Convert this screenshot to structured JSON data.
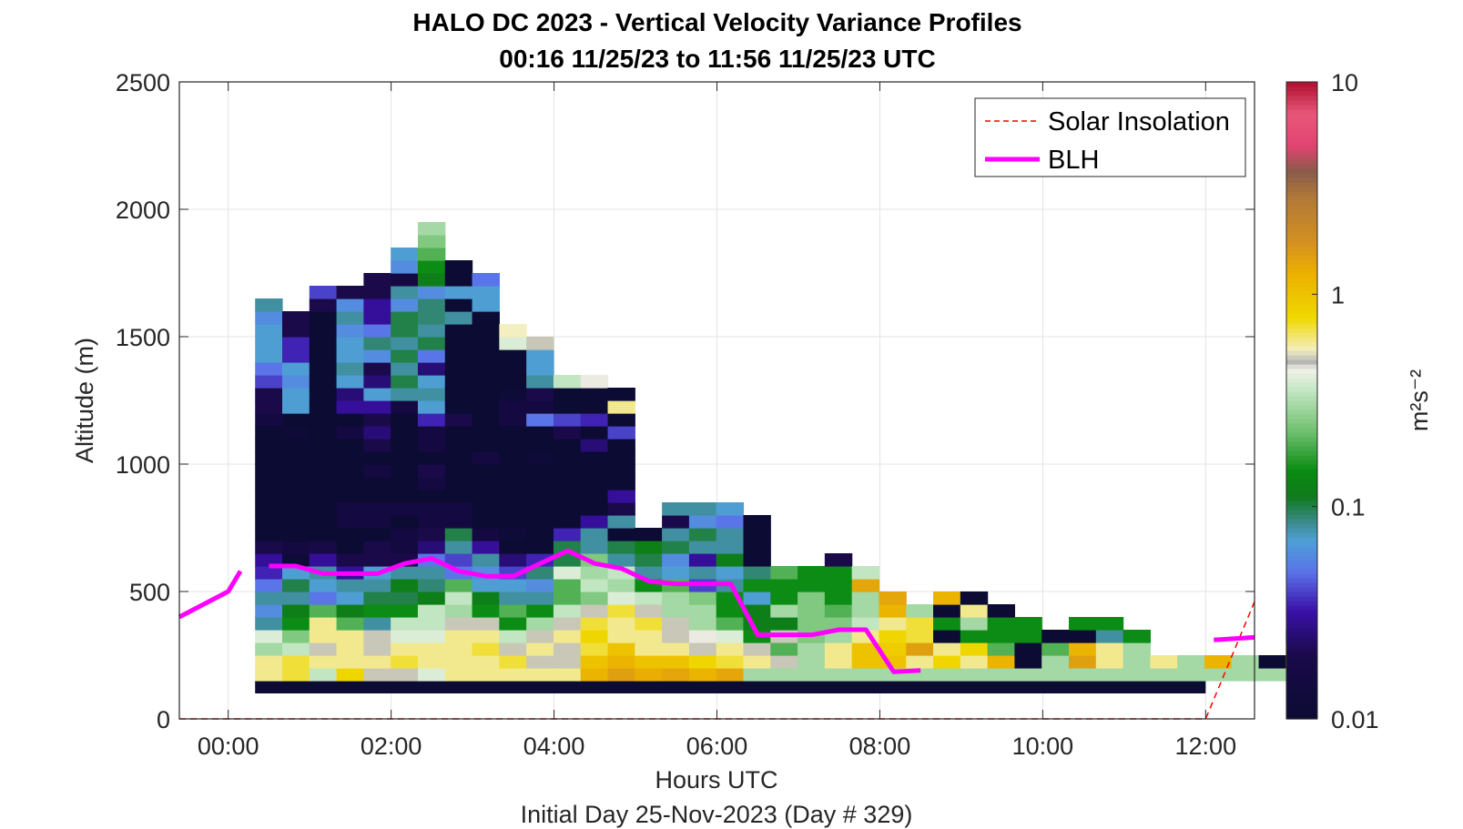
{
  "chart_data": {
    "type": "heatmap",
    "title": "HALO DC 2023 - Vertical Velocity Variance Profiles",
    "subtitle": "00:16 11/25/23 to 11:56 11/25/23  UTC",
    "xlabel": "Hours UTC",
    "footer": "Initial Day 25-Nov-2023 (Day # 329)",
    "ylabel": "Altitude (m)",
    "xlim": [
      -0.6,
      12.6
    ],
    "ylim": [
      0,
      2500
    ],
    "x_ticks": [
      0,
      2,
      4,
      6,
      8,
      10,
      12
    ],
    "x_tick_labels": [
      "00:00",
      "02:00",
      "04:00",
      "06:00",
      "08:00",
      "10:00",
      "12:00"
    ],
    "y_ticks": [
      0,
      500,
      1000,
      1500,
      2000,
      2500
    ],
    "y_tick_labels": [
      "0",
      "500",
      "1000",
      "1500",
      "2000",
      "2500"
    ],
    "grid": true,
    "legend_location": "top-right",
    "colorbar": {
      "scale": "log",
      "range": [
        0.01,
        10
      ],
      "ticks": [
        0.01,
        0.1,
        1,
        10
      ],
      "tick_labels": [
        "0.01",
        "0.1",
        "1",
        "10"
      ],
      "label": "m²s⁻²"
    },
    "cell_height_m": 50,
    "profile_start_hour": 0.33,
    "profile_step_hour": 0.333,
    "profiles": [
      {
        "z0": 150,
        "v": [
          0.6,
          0.6,
          0.3,
          0.4,
          0.08,
          0.06,
          0.08,
          0.05,
          0.035,
          0.03,
          0.02,
          0.01,
          0.01,
          0.01,
          0.01,
          0.01,
          0.01,
          0.01,
          0.01,
          0.01,
          0.015,
          0.02,
          0.02,
          0.04,
          0.05,
          0.07,
          0.07,
          0.07,
          0.06,
          0.08
        ]
      },
      {
        "z0": 150,
        "v": [
          0.7,
          0.7,
          0.35,
          0.25,
          0.15,
          0.12,
          0.08,
          0.1,
          0.07,
          0.012,
          0.015,
          0.01,
          0.01,
          0.01,
          0.01,
          0.01,
          0.01,
          0.01,
          0.01,
          0.012,
          0.01,
          0.07,
          0.07,
          0.06,
          0.07,
          0.035,
          0.035,
          0.02,
          0.02
        ]
      },
      {
        "z0": 150,
        "v": [
          0.35,
          0.6,
          0.5,
          0.6,
          0.6,
          0.2,
          0.05,
          0.07,
          0.08,
          0.03,
          0.018,
          0.01,
          0.01,
          0.01,
          0.01,
          0.01,
          0.01,
          0.01,
          0.01,
          0.01,
          0.01,
          0.01,
          0.01,
          0.01,
          0.01,
          0.01,
          0.01,
          0.01,
          0.01,
          0.02,
          0.04
        ]
      },
      {
        "z0": 150,
        "v": [
          0.8,
          0.6,
          0.6,
          0.6,
          0.2,
          0.12,
          0.07,
          0.08,
          0.03,
          0.02,
          0.01,
          0.01,
          0.015,
          0.015,
          0.01,
          0.01,
          0.01,
          0.01,
          0.01,
          0.015,
          0.01,
          0.03,
          0.025,
          0.07,
          0.08,
          0.07,
          0.07,
          0.06,
          0.08,
          0.06,
          0.02
        ]
      },
      {
        "z0": 150,
        "v": [
          0.5,
          0.6,
          0.5,
          0.5,
          0.08,
          0.15,
          0.1,
          0.08,
          0.07,
          0.02,
          0.02,
          0.01,
          0.015,
          0.015,
          0.01,
          0.01,
          0.015,
          0.01,
          0.02,
          0.025,
          0.02,
          0.03,
          0.07,
          0.025,
          0.02,
          0.06,
          0.09,
          0.05,
          0.03,
          0.03,
          0.02,
          0.02
        ]
      },
      {
        "z0": 150,
        "v": [
          0.5,
          0.7,
          0.6,
          0.4,
          0.35,
          0.15,
          0.1,
          0.12,
          0.08,
          0.02,
          0.015,
          0.015,
          0.01,
          0.015,
          0.01,
          0.01,
          0.01,
          0.01,
          0.01,
          0.01,
          0.01,
          0.015,
          0.08,
          0.1,
          0.08,
          0.1,
          0.08,
          0.1,
          0.1,
          0.06,
          0.08,
          0.015,
          0.06,
          0.07
        ]
      },
      {
        "z0": 150,
        "v": [
          0.4,
          0.6,
          0.6,
          0.4,
          0.35,
          0.35,
          0.12,
          0.09,
          0.08,
          0.05,
          0.025,
          0.02,
          0.015,
          0.015,
          0.01,
          0.015,
          0.02,
          0.01,
          0.015,
          0.015,
          0.035,
          0.07,
          0.08,
          0.07,
          0.025,
          0.05,
          0.1,
          0.08,
          0.09,
          0.09,
          0.06,
          0.12,
          0.15,
          0.2,
          0.25,
          0.3
        ]
      },
      {
        "z0": 150,
        "v": [
          0.6,
          0.6,
          0.6,
          0.6,
          0.5,
          0.3,
          0.35,
          0.2,
          0.05,
          0.04,
          0.08,
          0.1,
          0.015,
          0.015,
          0.01,
          0.01,
          0.01,
          0.01,
          0.01,
          0.01,
          0.02,
          0.01,
          0.01,
          0.01,
          0.01,
          0.01,
          0.01,
          0.01,
          0.08,
          0.01,
          0.07,
          0.01,
          0.01
        ]
      },
      {
        "z0": 150,
        "v": [
          0.6,
          0.6,
          0.7,
          0.6,
          0.5,
          0.15,
          0.12,
          0.07,
          0.06,
          0.08,
          0.03,
          0.015,
          0.01,
          0.01,
          0.01,
          0.01,
          0.01,
          0.015,
          0.01,
          0.01,
          0.01,
          0.01,
          0.01,
          0.01,
          0.01,
          0.01,
          0.01,
          0.01,
          0.01,
          0.07,
          0.07,
          0.05
        ]
      },
      {
        "z0": 150,
        "v": [
          0.6,
          0.7,
          0.5,
          0.35,
          0.15,
          0.2,
          0.08,
          0.07,
          0.04,
          0.025,
          0.01,
          0.012,
          0.01,
          0.01,
          0.01,
          0.01,
          0.01,
          0.01,
          0.01,
          0.01,
          0.015,
          0.015,
          0.012,
          0.01,
          0.01,
          0.01,
          0.4,
          0.55
        ]
      },
      {
        "z0": 150,
        "v": [
          0.6,
          0.5,
          0.6,
          0.5,
          0.3,
          0.15,
          0.08,
          0.06,
          0.09,
          0.035,
          0.01,
          0.01,
          0.01,
          0.01,
          0.01,
          0.01,
          0.01,
          0.012,
          0.01,
          0.01,
          0.05,
          0.015,
          0.02,
          0.08,
          0.07,
          0.07,
          0.5
        ]
      },
      {
        "z0": 150,
        "v": [
          0.6,
          0.5,
          0.5,
          0.6,
          0.5,
          0.35,
          0.2,
          0.2,
          0.4,
          0.1,
          0.1,
          0.035,
          0.01,
          0.01,
          0.01,
          0.01,
          0.01,
          0.01,
          0.01,
          0.02,
          0.04,
          0.01,
          0.01,
          0.35
        ]
      },
      {
        "z0": 150,
        "v": [
          1.2,
          1.0,
          0.7,
          0.8,
          0.7,
          0.5,
          0.25,
          0.35,
          0.3,
          0.25,
          0.08,
          0.08,
          0.03,
          0.01,
          0.01,
          0.01,
          0.01,
          0.01,
          0.025,
          0.01,
          0.035,
          0.01,
          0.01,
          0.45
        ]
      },
      {
        "z0": 150,
        "v": [
          1.5,
          1.2,
          1.0,
          0.6,
          0.6,
          0.7,
          0.4,
          0.3,
          0.35,
          0.08,
          0.1,
          0.01,
          0.08,
          0.02,
          0.03,
          0.01,
          0.01,
          0.01,
          0.01,
          0.04,
          0.01,
          0.6,
          0.01
        ]
      },
      {
        "z0": 150,
        "v": [
          1.3,
          1.0,
          0.6,
          0.6,
          0.7,
          0.5,
          0.35,
          0.15,
          0.08,
          0.1,
          0.12,
          0.01
        ]
      },
      {
        "z0": 150,
        "v": [
          1.4,
          1.0,
          0.6,
          0.5,
          0.5,
          0.3,
          0.3,
          0.2,
          0.07,
          0.06,
          0.1,
          0.08,
          0.02,
          0.08
        ]
      },
      {
        "z0": 150,
        "v": [
          1.2,
          0.8,
          0.5,
          0.45,
          0.3,
          0.3,
          0.25,
          0.04,
          0.08,
          0.03,
          0.08,
          0.1,
          0.06,
          0.08
        ]
      },
      {
        "z0": 150,
        "v": [
          1.4,
          0.7,
          0.6,
          0.4,
          0.2,
          0.15,
          0.15,
          0.08,
          0.07,
          0.12,
          0.08,
          0.08,
          0.05,
          0.07
        ]
      },
      {
        "z0": 150,
        "v": [
          0.3,
          0.6,
          0.5,
          0.15,
          0.12,
          0.12,
          0.07,
          0.15,
          0.09,
          0.01,
          0.01,
          0.01,
          0.01
        ]
      },
      {
        "z0": 150,
        "v": [
          0.3,
          0.5,
          0.2,
          0.5,
          0.12,
          0.3,
          0.15,
          0.15,
          0.2
        ]
      },
      {
        "z0": 150,
        "v": [
          0.3,
          0.3,
          0.3,
          0.25,
          0.25,
          0.25,
          0.25,
          0.15,
          0.15
        ]
      },
      {
        "z0": 150,
        "v": [
          0.3,
          0.6,
          0.6,
          0.3,
          0.25,
          0.2,
          0.15,
          0.15,
          0.15,
          0.02
        ]
      },
      {
        "z0": 150,
        "v": [
          0.3,
          1.0,
          1.0,
          0.6,
          0.35,
          0.3,
          0.3,
          1.4,
          0.35
        ]
      },
      {
        "z0": 150,
        "v": [
          0.3,
          1.0,
          0.9,
          0.8,
          0.6,
          1.2,
          1.4
        ]
      },
      {
        "z0": 150,
        "v": [
          0.3,
          0.6,
          1.5,
          0.7,
          0.7,
          0.3
        ]
      },
      {
        "z0": 150,
        "v": [
          0.3,
          0.8,
          0.6,
          0.01,
          0.15,
          0.01,
          1.2
        ]
      },
      {
        "z0": 150,
        "v": [
          0.3,
          0.6,
          0.8,
          0.15,
          0.3,
          0.6,
          0.01
        ]
      },
      {
        "z0": 150,
        "v": [
          0.3,
          1.2,
          0.2,
          0.15,
          0.15,
          0.01
        ]
      },
      {
        "z0": 150,
        "v": [
          0.3,
          0.01,
          0.01,
          0.15,
          0.15
        ]
      },
      {
        "z0": 150,
        "v": [
          0.3,
          0.3,
          0.2,
          0.01
        ]
      },
      {
        "z0": 150,
        "v": [
          0.3,
          1.5,
          1.2,
          0.01,
          0.15
        ]
      },
      {
        "z0": 150,
        "v": [
          0.3,
          0.6,
          0.6,
          0.08,
          0.15
        ]
      },
      {
        "z0": 150,
        "v": [
          0.3,
          0.3,
          0.3,
          0.15
        ]
      },
      {
        "z0": 150,
        "v": [
          0.3,
          0.6
        ]
      },
      {
        "z0": 150,
        "v": [
          0.3,
          0.3
        ]
      },
      {
        "z0": 150,
        "v": [
          0.3,
          1.2
        ]
      },
      {
        "z0": 150,
        "v": [
          0.3,
          0.3
        ]
      },
      {
        "z0": 150,
        "v": [
          0.3,
          0.01
        ]
      },
      {
        "z0": 150,
        "v": [
          0.3,
          0.8,
          0.8,
          0.12
        ]
      }
    ],
    "surface_band": {
      "x_start": 0.33,
      "x_end": 12.0,
      "y0": 100,
      "y1": 150,
      "value": 0.01
    },
    "series": [
      {
        "name": "Solar Insolation",
        "style": "dashed",
        "color": "#ff0000",
        "x": [
          -0.6,
          12.0,
          12.6
        ],
        "y": [
          0,
          0,
          460
        ]
      },
      {
        "name": "BLH",
        "style": "solid",
        "color": "#ff00ff",
        "segments": [
          {
            "x": [
              -0.6,
              -0.3,
              0.0,
              0.15
            ],
            "y": [
              400,
              450,
              500,
              580
            ]
          },
          {
            "x": [
              0.5,
              0.83,
              1.17,
              1.5,
              1.83,
              2.17,
              2.5,
              2.83,
              3.17,
              3.5,
              3.83,
              4.17,
              4.5,
              4.83,
              5.17,
              5.5,
              5.83,
              6.17,
              6.5,
              6.83,
              7.17,
              7.5,
              7.83,
              8.17,
              8.5
            ],
            "y": [
              600,
              600,
              570,
              570,
              570,
              610,
              630,
              580,
              560,
              560,
              610,
              660,
              610,
              590,
              540,
              530,
              530,
              530,
              330,
              330,
              330,
              350,
              350,
              185,
              190
            ]
          },
          {
            "x": [
              12.1,
              12.6
            ],
            "y": [
              310,
              320
            ]
          }
        ]
      }
    ]
  }
}
